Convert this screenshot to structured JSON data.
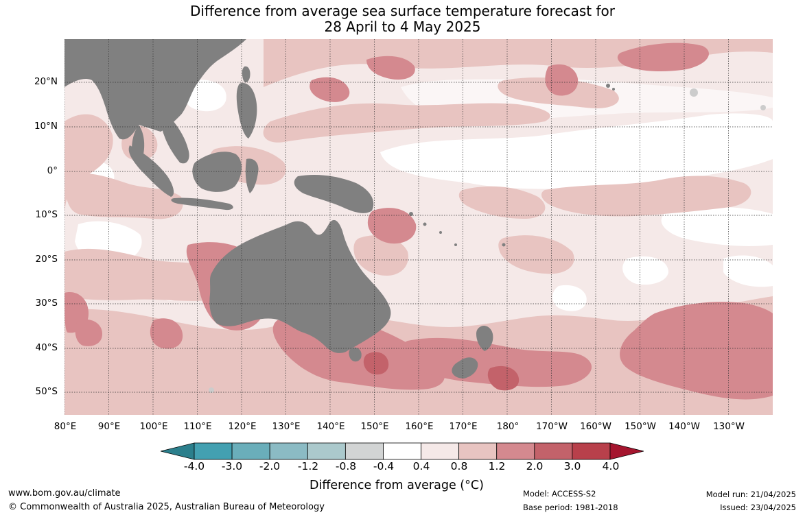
{
  "title": {
    "line1": "Difference from average sea surface temperature forecast for",
    "line2": "28 April to 4 May 2025"
  },
  "map": {
    "latitude_labels": [
      "20°N",
      "10°N",
      "0°",
      "10°S",
      "20°S",
      "30°S",
      "40°S",
      "50°S"
    ],
    "longitude_labels": [
      "80°E",
      "90°E",
      "100°E",
      "110°E",
      "120°E",
      "130°E",
      "140°E",
      "150°E",
      "160°E",
      "170°E",
      "180°",
      "170°W",
      "160°W",
      "150°W",
      "140°W",
      "130°W"
    ],
    "land_color": "#808080",
    "sea_ice_color": "#cccccc",
    "gridlines": "dotted"
  },
  "legend": {
    "ticks": [
      "-4.0",
      "-3.0",
      "-2.0",
      "-1.2",
      "-0.8",
      "-0.4",
      "0.4",
      "0.8",
      "1.2",
      "2.0",
      "3.0",
      "4.0"
    ],
    "colors": [
      "#2b7f8c",
      "#43a0b1",
      "#6aaeba",
      "#8bbbc4",
      "#abc9cc",
      "#d2d4d4",
      "#ffffff",
      "#f5e9e8",
      "#e8c4c1",
      "#d4898f",
      "#c3626a",
      "#b8404b",
      "#a5152e"
    ],
    "label": "Difference from average (°C)"
  },
  "footer": {
    "website": "www.bom.gov.au/climate",
    "copyright": "© Commonwealth of Australia 2025, Australian Bureau of Meteorology",
    "model": "Model: ACCESS-S2",
    "base_period": "Base period: 1981-2018",
    "model_run": "Model run: 21/04/2025",
    "issued": "Issued: 23/04/2025"
  }
}
